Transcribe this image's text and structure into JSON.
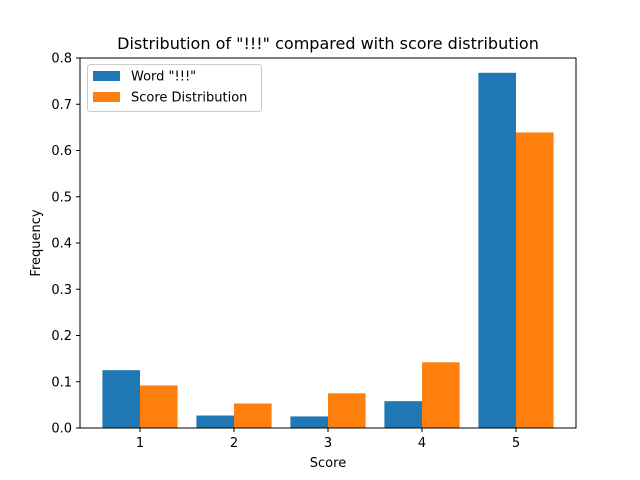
{
  "chart_data": {
    "type": "bar",
    "title": "Distribution of \"!!!\" compared with score distribution",
    "xlabel": "Score",
    "ylabel": "Frequency",
    "categories": [
      "1",
      "2",
      "3",
      "4",
      "5"
    ],
    "series": [
      {
        "name": "Word \"!!!\"",
        "color": "#1f77b4",
        "values": [
          0.125,
          0.027,
          0.025,
          0.058,
          0.768
        ]
      },
      {
        "name": "Score Distribution",
        "color": "#ff7f0e",
        "values": [
          0.092,
          0.053,
          0.075,
          0.142,
          0.639
        ]
      }
    ],
    "ylim": [
      0,
      0.8
    ],
    "yticks": [
      0.0,
      0.1,
      0.2,
      0.3,
      0.4,
      0.5,
      0.6,
      0.7,
      0.8
    ],
    "ytick_labels": [
      "0.0",
      "0.1",
      "0.2",
      "0.3",
      "0.4",
      "0.5",
      "0.6",
      "0.7",
      "0.8"
    ],
    "grid": false,
    "legend_position": "top-left"
  }
}
